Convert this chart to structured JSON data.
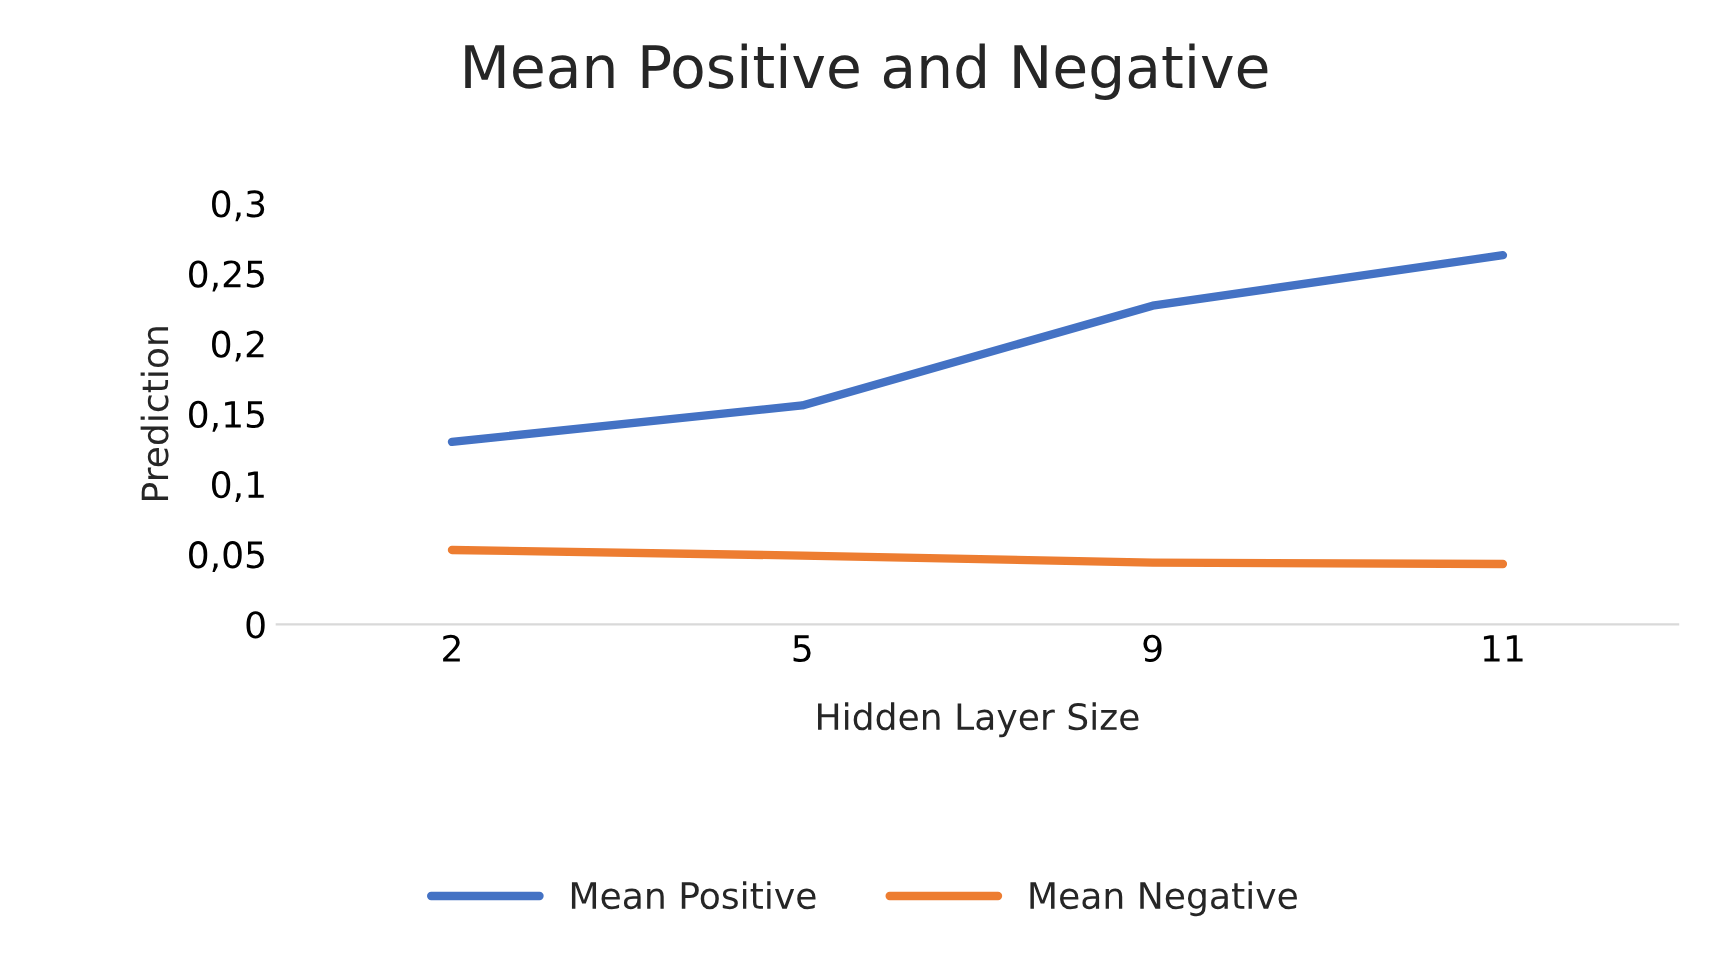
{
  "chart_data": {
    "type": "line",
    "title": "Mean Positive and Negative",
    "xlabel": "Hidden Layer Size",
    "ylabel": "Prediction",
    "categories": [
      "2",
      "5",
      "9",
      "11"
    ],
    "series": [
      {
        "name": "Mean Positive",
        "color": "#4472c4",
        "values": [
          0.13,
          0.156,
          0.227,
          0.263
        ]
      },
      {
        "name": "Mean Negative",
        "color": "#ed7d31",
        "values": [
          0.053,
          0.049,
          0.044,
          0.043
        ]
      }
    ],
    "ylim": [
      0,
      0.3
    ],
    "yticks": [
      0,
      {
        "value": 0.05,
        "label": "0,05"
      },
      {
        "value": 0.1,
        "label": "0,1"
      },
      {
        "value": 0.15,
        "label": "0,15"
      },
      {
        "value": 0.2,
        "label": "0,2"
      },
      {
        "value": 0.25,
        "label": "0,25"
      },
      {
        "value": 0.3,
        "label": "0,3"
      }
    ],
    "grid": false,
    "legend": "bottom",
    "marker": "none",
    "line_style": "solid"
  }
}
